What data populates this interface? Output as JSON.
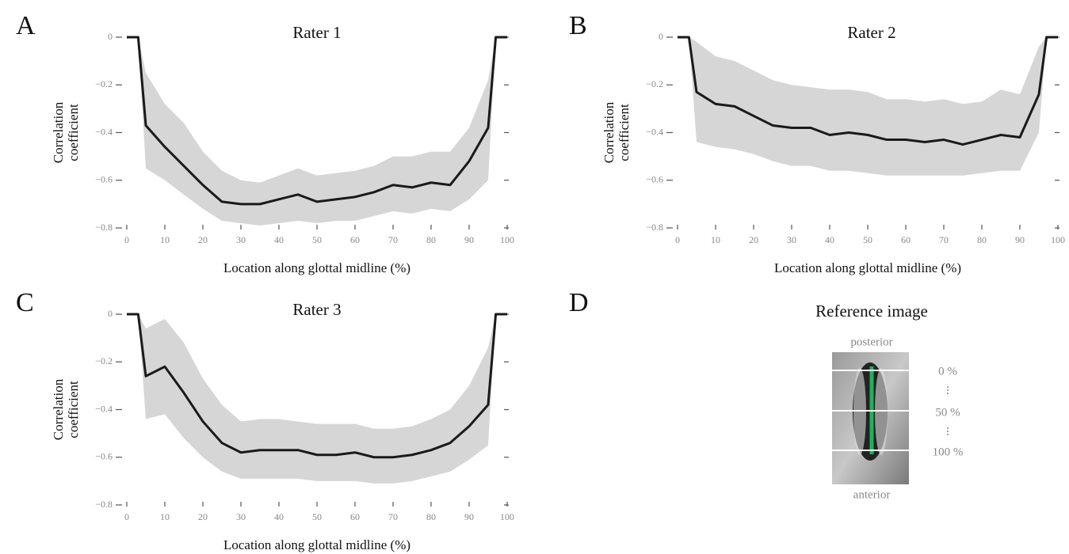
{
  "chart_data": [
    {
      "type": "line",
      "panel": "A",
      "title": "Rater 1",
      "ylabel": [
        "Correlation",
        "coefficient"
      ],
      "xlabel": "Location along glottal midline (%)",
      "x": [
        0,
        3,
        5,
        10,
        15,
        20,
        25,
        30,
        35,
        40,
        45,
        50,
        55,
        60,
        65,
        70,
        75,
        80,
        85,
        90,
        95,
        97,
        100
      ],
      "series": [
        {
          "color": "#1a1a1a",
          "band_color": "#d6d6d6",
          "values": [
            0,
            0,
            -0.37,
            -0.46,
            -0.54,
            -0.62,
            -0.69,
            -0.7,
            -0.7,
            -0.68,
            -0.66,
            -0.69,
            -0.68,
            -0.67,
            -0.65,
            -0.62,
            -0.63,
            -0.61,
            -0.62,
            -0.52,
            -0.38,
            0,
            0
          ],
          "lower": [
            0,
            0,
            -0.55,
            -0.6,
            -0.66,
            -0.72,
            -0.77,
            -0.78,
            -0.79,
            -0.78,
            -0.77,
            -0.78,
            -0.77,
            -0.77,
            -0.75,
            -0.73,
            -0.74,
            -0.72,
            -0.73,
            -0.68,
            -0.6,
            0,
            0
          ],
          "upper": [
            0,
            0,
            -0.15,
            -0.28,
            -0.36,
            -0.48,
            -0.56,
            -0.6,
            -0.61,
            -0.58,
            -0.55,
            -0.58,
            -0.57,
            -0.56,
            -0.54,
            -0.5,
            -0.5,
            -0.48,
            -0.48,
            -0.38,
            -0.18,
            0,
            0
          ]
        }
      ],
      "xlim": [
        0,
        100
      ],
      "ylim": [
        -0.8,
        0
      ],
      "xticks": [
        0,
        10,
        20,
        30,
        40,
        50,
        60,
        70,
        80,
        90,
        100
      ],
      "yticks": [
        {
          "value": -0.8,
          "label": "−0.8"
        },
        {
          "value": -0.6,
          "label": "−0.6"
        },
        {
          "value": -0.4,
          "label": "−0.4"
        },
        {
          "value": -0.2,
          "label": "−0.2"
        },
        0
      ]
    },
    {
      "type": "line",
      "panel": "B",
      "title": "Rater 2",
      "ylabel": [
        "Correlation",
        "coefficient"
      ],
      "xlabel": "Location along glottal midline (%)",
      "x": [
        0,
        3,
        5,
        10,
        15,
        20,
        25,
        30,
        35,
        40,
        45,
        50,
        55,
        60,
        65,
        70,
        75,
        80,
        85,
        90,
        95,
        97,
        100
      ],
      "series": [
        {
          "color": "#1a1a1a",
          "band_color": "#d6d6d6",
          "values": [
            0,
            0,
            -0.23,
            -0.28,
            -0.29,
            -0.33,
            -0.37,
            -0.38,
            -0.38,
            -0.41,
            -0.4,
            -0.41,
            -0.43,
            -0.43,
            -0.44,
            -0.43,
            -0.45,
            -0.43,
            -0.41,
            -0.42,
            -0.24,
            0,
            0
          ],
          "lower": [
            0,
            0,
            -0.44,
            -0.46,
            -0.47,
            -0.49,
            -0.52,
            -0.54,
            -0.54,
            -0.56,
            -0.56,
            -0.57,
            -0.58,
            -0.58,
            -0.58,
            -0.58,
            -0.58,
            -0.57,
            -0.56,
            -0.56,
            -0.4,
            0,
            0
          ],
          "upper": [
            0,
            0,
            -0.02,
            -0.08,
            -0.1,
            -0.14,
            -0.18,
            -0.2,
            -0.21,
            -0.22,
            -0.22,
            -0.23,
            -0.26,
            -0.26,
            -0.27,
            -0.26,
            -0.28,
            -0.27,
            -0.22,
            -0.24,
            -0.04,
            0,
            0
          ]
        }
      ],
      "xlim": [
        0,
        100
      ],
      "ylim": [
        -0.8,
        0
      ],
      "xticks": [
        0,
        10,
        20,
        30,
        40,
        50,
        60,
        70,
        80,
        90,
        100
      ],
      "yticks": [
        {
          "value": -0.8,
          "label": "−0.8"
        },
        {
          "value": -0.6,
          "label": "−0.6"
        },
        {
          "value": -0.4,
          "label": "−0.4"
        },
        {
          "value": -0.2,
          "label": "−0.2"
        },
        0
      ]
    },
    {
      "type": "line",
      "panel": "C",
      "title": "Rater 3",
      "ylabel": [
        "Correlation",
        "coefficient"
      ],
      "xlabel": "Location along glottal midline (%)",
      "x": [
        0,
        3,
        5,
        10,
        15,
        20,
        25,
        30,
        35,
        40,
        45,
        50,
        55,
        60,
        65,
        70,
        75,
        80,
        85,
        90,
        95,
        97,
        100
      ],
      "series": [
        {
          "color": "#1a1a1a",
          "band_color": "#d6d6d6",
          "values": [
            0,
            0,
            -0.26,
            -0.22,
            -0.33,
            -0.45,
            -0.54,
            -0.58,
            -0.57,
            -0.57,
            -0.57,
            -0.59,
            -0.59,
            -0.58,
            -0.6,
            -0.6,
            -0.59,
            -0.57,
            -0.54,
            -0.47,
            -0.38,
            0,
            0
          ],
          "lower": [
            0,
            0,
            -0.44,
            -0.42,
            -0.52,
            -0.6,
            -0.66,
            -0.69,
            -0.69,
            -0.69,
            -0.69,
            -0.7,
            -0.7,
            -0.7,
            -0.71,
            -0.71,
            -0.7,
            -0.68,
            -0.66,
            -0.61,
            -0.55,
            0,
            0
          ],
          "upper": [
            0,
            0,
            -0.06,
            -0.02,
            -0.12,
            -0.27,
            -0.38,
            -0.45,
            -0.44,
            -0.44,
            -0.45,
            -0.46,
            -0.46,
            -0.46,
            -0.48,
            -0.48,
            -0.47,
            -0.44,
            -0.4,
            -0.3,
            -0.14,
            0,
            0
          ]
        }
      ],
      "xlim": [
        0,
        100
      ],
      "ylim": [
        -0.8,
        0
      ],
      "xticks": [
        0,
        10,
        20,
        30,
        40,
        50,
        60,
        70,
        80,
        90,
        100
      ],
      "yticks": [
        {
          "value": -0.8,
          "label": "−0.8"
        },
        {
          "value": -0.6,
          "label": "−0.6"
        },
        {
          "value": -0.4,
          "label": "−0.4"
        },
        {
          "value": -0.2,
          "label": "−0.2"
        },
        0
      ]
    }
  ],
  "reference_image": {
    "panel": "D",
    "title": "Reference image",
    "top_label": "posterior",
    "bottom_label": "anterior",
    "levels": [
      "0 %",
      "50 %",
      "100 %"
    ]
  }
}
